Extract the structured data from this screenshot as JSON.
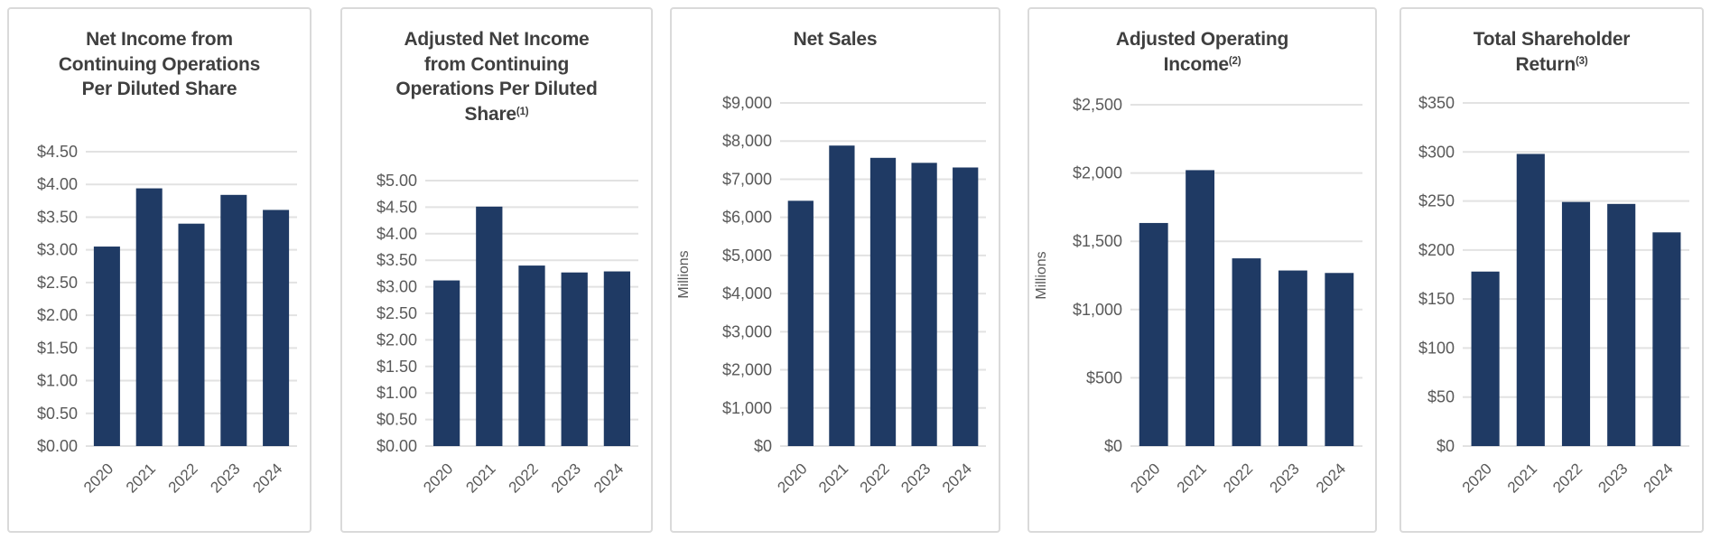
{
  "colors": {
    "bar": "#1f3a64",
    "gridline": "#e2e2e2",
    "axis_label": "#595959",
    "title": "#3f3f3f",
    "card_border": "#dadada",
    "card_background": "#ffffff"
  },
  "chart_data": [
    {
      "type": "bar",
      "title": "Net Income from Continuing Operations Per Diluted Share",
      "sup": "",
      "categories": [
        "2020",
        "2021",
        "2022",
        "2023",
        "2024"
      ],
      "values": [
        3.05,
        3.94,
        3.4,
        3.84,
        3.61
      ],
      "ylim": [
        0,
        4.5
      ],
      "ytick_step": 0.5,
      "ytick_labels": [
        "$0.00",
        "$0.50",
        "$1.00",
        "$1.50",
        "$2.00",
        "$2.50",
        "$3.00",
        "$3.50",
        "$4.00",
        "$4.50"
      ],
      "xlabel": "",
      "ylabel": "",
      "grid": true,
      "legend": false
    },
    {
      "type": "bar",
      "title": "Adjusted Net Income from Continuing Operations Per Diluted Share",
      "sup": "(1)",
      "categories": [
        "2020",
        "2021",
        "2022",
        "2023",
        "2024"
      ],
      "values": [
        3.12,
        4.51,
        3.4,
        3.27,
        3.29
      ],
      "ylim": [
        0,
        5.0
      ],
      "ytick_step": 0.5,
      "ytick_labels": [
        "$0.00",
        "$0.50",
        "$1.00",
        "$1.50",
        "$2.00",
        "$2.50",
        "$3.00",
        "$3.50",
        "$4.00",
        "$4.50",
        "$5.00"
      ],
      "xlabel": "",
      "ylabel": "",
      "grid": true,
      "legend": false
    },
    {
      "type": "bar",
      "title": "Net Sales",
      "sup": "",
      "categories": [
        "2020",
        "2021",
        "2022",
        "2023",
        "2024"
      ],
      "values": [
        6434,
        7882,
        7560,
        7429,
        7307
      ],
      "ylim": [
        0,
        9000
      ],
      "ytick_step": 1000,
      "ytick_labels": [
        "$0",
        "$1,000",
        "$2,000",
        "$3,000",
        "$4,000",
        "$5,000",
        "$6,000",
        "$7,000",
        "$8,000",
        "$9,000"
      ],
      "xlabel": "",
      "ylabel": "Millions",
      "grid": true,
      "legend": false
    },
    {
      "type": "bar",
      "title": "Adjusted Operating Income",
      "sup": "(2)",
      "categories": [
        "2020",
        "2021",
        "2022",
        "2023",
        "2024"
      ],
      "values": [
        1634,
        2021,
        1375,
        1286,
        1268
      ],
      "ylim": [
        0,
        2500
      ],
      "ytick_step": 500,
      "ytick_labels": [
        "$0",
        "$500",
        "$1,000",
        "$1,500",
        "$2,000",
        "$2,500"
      ],
      "xlabel": "",
      "ylabel": "Millions",
      "grid": true,
      "legend": false
    },
    {
      "type": "bar",
      "title": "Total Shareholder Return",
      "sup": "(3)",
      "categories": [
        "2020",
        "2021",
        "2022",
        "2023",
        "2024"
      ],
      "values": [
        178,
        298,
        249,
        247,
        218
      ],
      "ylim": [
        0,
        350
      ],
      "ytick_step": 50,
      "ytick_labels": [
        "$0",
        "$50",
        "$100",
        "$150",
        "$200",
        "$250",
        "$300",
        "$350"
      ],
      "xlabel": "",
      "ylabel": "",
      "grid": true,
      "legend": false
    }
  ]
}
